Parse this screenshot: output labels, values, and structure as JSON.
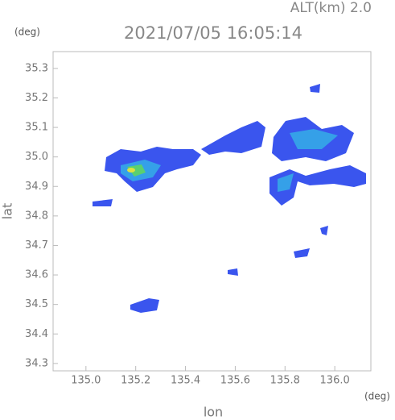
{
  "chart_data": {
    "type": "radar-map",
    "altitude": "ALT(km) 2.0",
    "title": "2021/07/05 16:05:14",
    "y_unit": "(deg)",
    "x_unit": "(deg)",
    "xlabel": "lon",
    "ylabel": "lat",
    "xlim": [
      134.868,
      136.145
    ],
    "ylim": [
      34.275,
      35.357
    ],
    "xticks": [
      {
        "value": 135,
        "label": "135.0"
      },
      135.2,
      135.4,
      135.6,
      135.8,
      {
        "value": 136,
        "label": "136.0"
      }
    ],
    "yticks": [
      34.3,
      34.4,
      34.5,
      34.6,
      34.7,
      34.8,
      34.9,
      {
        "value": 35,
        "label": "35.0"
      },
      35.1,
      35.2,
      35.3
    ]
  }
}
